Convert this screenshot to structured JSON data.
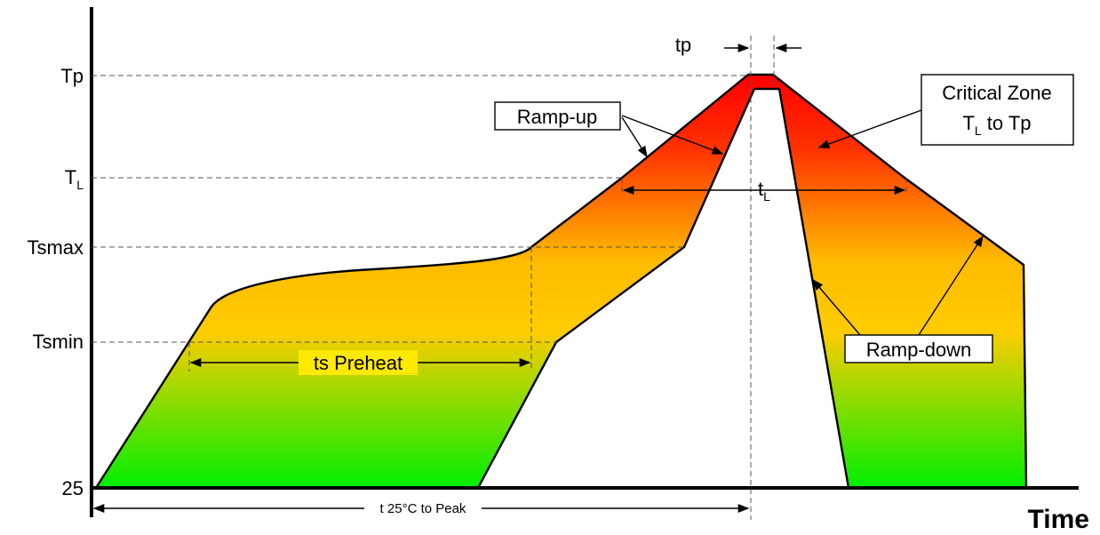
{
  "y_levels": {
    "tp": "Tp",
    "tl": "T",
    "tl_sub": "L",
    "tsmax": "Tsmax",
    "tsmin": "Tsmin",
    "t25": "25"
  },
  "x_axis_label": "Time",
  "labels": {
    "tp_top": "tp",
    "ramp_up": "Ramp-up",
    "critical_zone_line1": "Critical Zone",
    "critical_zone_line2_a": "T",
    "critical_zone_line2_sub": "L",
    "critical_zone_line2_b": " to Tp",
    "tl_span": "t",
    "tl_span_sub": "L",
    "ts_preheat": "ts Preheat",
    "ramp_down": "Ramp-down",
    "t25_to_peak": "t 25°C to Peak"
  },
  "colors": {
    "gradient_top": "#ff0000",
    "gradient_mid": "#ffcc00",
    "gradient_bottom": "#00ee00"
  }
}
